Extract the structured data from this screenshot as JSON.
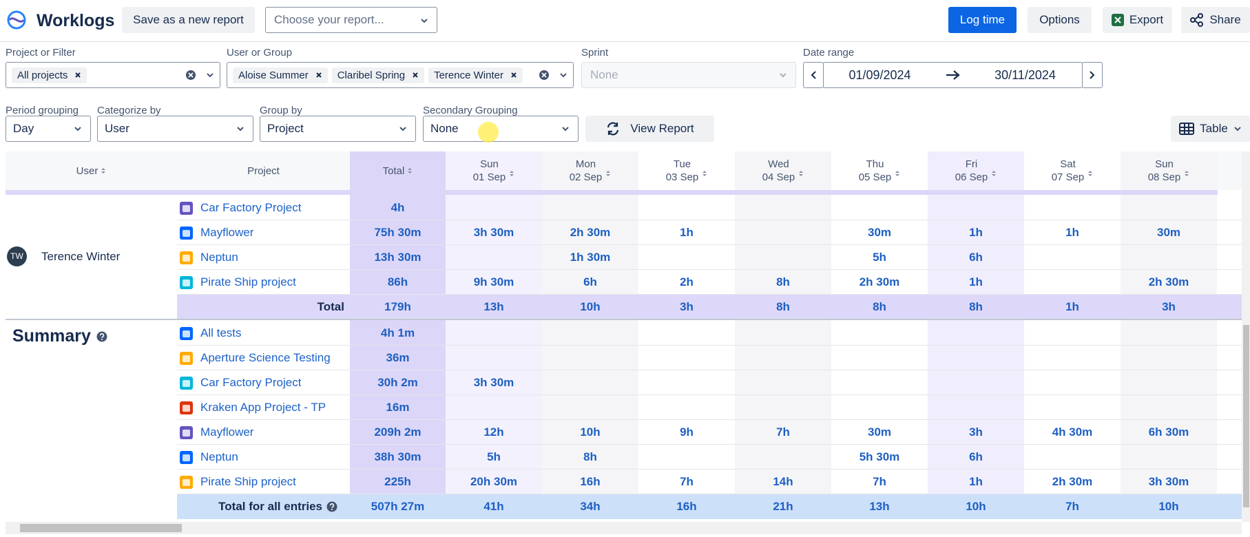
{
  "header": {
    "title": "Worklogs",
    "save_button": "Save as a new report",
    "report_placeholder": "Choose your report...",
    "log_time": "Log time",
    "options": "Options",
    "export": "Export",
    "share": "Share"
  },
  "filters": {
    "project_label": "Project or Filter",
    "project_chips": [
      "All projects"
    ],
    "user_label": "User or Group",
    "user_chips": [
      "Aloise Summer",
      "Claribel Spring",
      "Terence Winter"
    ],
    "sprint_label": "Sprint",
    "sprint_value": "None",
    "date_label": "Date range",
    "date_from": "01/09/2024",
    "date_to": "30/11/2024",
    "period_label": "Period grouping",
    "period_value": "Day",
    "categorize_label": "Categorize by",
    "categorize_value": "User",
    "group_label": "Group by",
    "group_value": "Project",
    "secondary_label": "Secondary Grouping",
    "secondary_value": "None",
    "view_report": "View Report",
    "view_mode": "Table"
  },
  "table": {
    "fixed_columns": [
      "User",
      "Project",
      "Total"
    ],
    "days": [
      {
        "day": "Sun",
        "date": "01 Sep"
      },
      {
        "day": "Mon",
        "date": "02 Sep"
      },
      {
        "day": "Tue",
        "date": "03 Sep"
      },
      {
        "day": "Wed",
        "date": "04 Sep"
      },
      {
        "day": "Thu",
        "date": "05 Sep"
      },
      {
        "day": "Fri",
        "date": "06 Sep"
      },
      {
        "day": "Sat",
        "date": "07 Sep"
      },
      {
        "day": "Sun",
        "date": "08 Sep"
      }
    ],
    "user_group": {
      "initials": "TW",
      "name": "Terence Winter",
      "rows": [
        {
          "project": "Car Factory Project",
          "total": "4h",
          "cells": [
            null,
            null,
            null,
            null,
            null,
            null,
            null,
            null
          ]
        },
        {
          "project": "Mayflower",
          "total": "75h 30m",
          "cells": [
            "3h 30m",
            "2h 30m",
            "1h",
            null,
            "30m",
            "1h",
            "1h",
            "30m"
          ]
        },
        {
          "project": "Neptun",
          "total": "13h 30m",
          "cells": [
            null,
            "1h 30m",
            null,
            null,
            "5h",
            "6h",
            null,
            null
          ]
        },
        {
          "project": "Pirate Ship project",
          "total": "86h",
          "cells": [
            "9h 30m",
            "6h",
            "2h",
            "8h",
            "2h 30m",
            "1h",
            null,
            "2h 30m"
          ]
        }
      ],
      "total_label": "Total",
      "total": "179h",
      "total_cells": [
        "13h",
        "10h",
        "3h",
        "8h",
        "8h",
        "8h",
        "1h",
        "3h"
      ]
    },
    "summary": {
      "title": "Summary",
      "rows": [
        {
          "project": "All tests",
          "total": "4h 1m",
          "cells": [
            null,
            null,
            null,
            null,
            null,
            null,
            null,
            null
          ]
        },
        {
          "project": "Aperture Science Testing",
          "total": "36m",
          "cells": [
            null,
            null,
            null,
            null,
            null,
            null,
            null,
            null
          ]
        },
        {
          "project": "Car Factory Project",
          "total": "30h 2m",
          "cells": [
            "3h 30m",
            null,
            null,
            null,
            null,
            null,
            null,
            null
          ]
        },
        {
          "project": "Kraken App Project - TP",
          "total": "16m",
          "cells": [
            null,
            null,
            null,
            null,
            null,
            null,
            null,
            null
          ]
        },
        {
          "project": "Mayflower",
          "total": "209h 2m",
          "cells": [
            "12h",
            "10h",
            "9h",
            "7h",
            "30m",
            "3h",
            "4h 30m",
            "6h 30m"
          ]
        },
        {
          "project": "Neptun",
          "total": "38h 30m",
          "cells": [
            "5h",
            "8h",
            null,
            null,
            "5h 30m",
            "6h",
            null,
            null
          ]
        },
        {
          "project": "Pirate Ship project",
          "total": "225h",
          "cells": [
            "20h 30m",
            "16h",
            "7h",
            "14h",
            "7h",
            "1h",
            "2h 30m",
            "3h 30m"
          ]
        }
      ],
      "total_label": "Total for all entries",
      "total": "507h 27m",
      "total_cells": [
        "41h",
        "34h",
        "16h",
        "21h",
        "13h",
        "10h",
        "7h",
        "10h"
      ]
    }
  }
}
